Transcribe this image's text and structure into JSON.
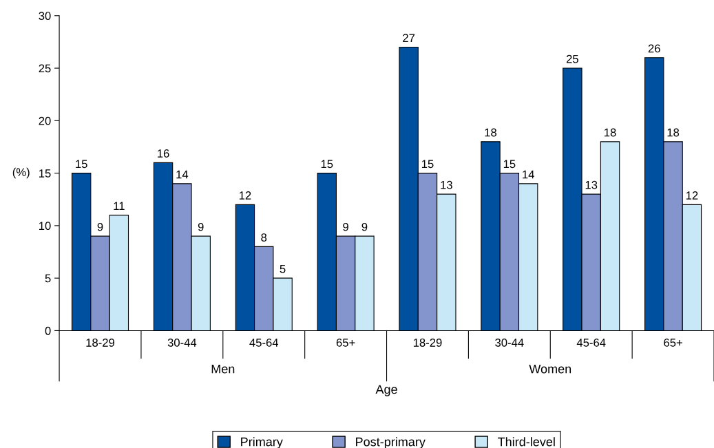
{
  "chart_data": {
    "type": "bar",
    "xlabel": "Age",
    "ylabel": "(%)",
    "categories": [
      "18-29",
      "30-44",
      "45-64",
      "65+",
      "18-29",
      "30-44",
      "45-64",
      "65+"
    ],
    "series": [
      {
        "name": "Primary",
        "color": "#0050a0",
        "values": [
          15,
          16,
          12,
          15,
          27,
          18,
          25,
          26
        ]
      },
      {
        "name": "Post-primary",
        "color": "#8494cc",
        "values": [
          9,
          14,
          8,
          9,
          15,
          15,
          13,
          18
        ]
      },
      {
        "name": "Third-level",
        "color": "#c8e8f8",
        "values": [
          11,
          9,
          5,
          9,
          13,
          14,
          18,
          12
        ]
      }
    ],
    "annotations": [
      "Men",
      "Women"
    ],
    "ylim": [
      0,
      30
    ],
    "yticks": [
      0,
      5,
      10,
      15,
      20,
      25,
      30
    ],
    "grid": false,
    "legend": "bottom",
    "data_labels": true
  }
}
